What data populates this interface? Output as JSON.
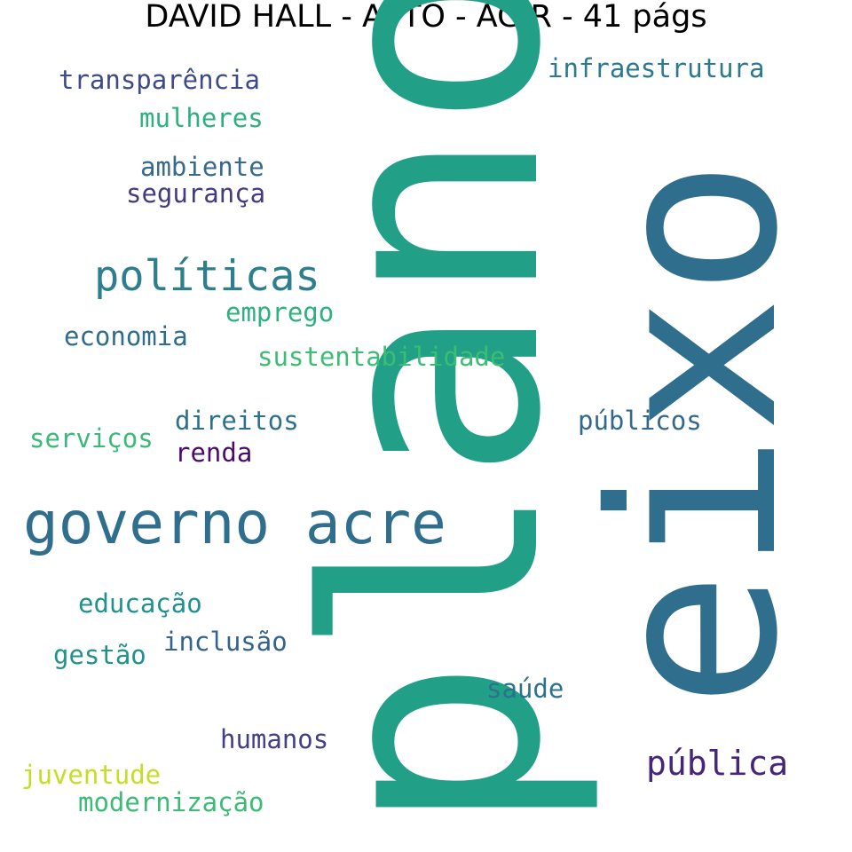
{
  "title": "DAVID HALL - APTO - AGIR - 41 págs",
  "words": [
    {
      "text": "plano",
      "color": "#21a087",
      "orientation": "vertical"
    },
    {
      "text": "eixo",
      "color": "#306e8e",
      "orientation": "vertical"
    },
    {
      "text": "governo acre",
      "color": "#306e8e",
      "orientation": "horizontal"
    },
    {
      "text": "políticas",
      "color": "#2d7f8e",
      "orientation": "horizontal"
    },
    {
      "text": "pública",
      "color": "#46267b",
      "orientation": "horizontal"
    },
    {
      "text": "infraestrutura",
      "color": "#2a798e",
      "orientation": "horizontal"
    },
    {
      "text": "transparência",
      "color": "#3e4a89",
      "orientation": "horizontal"
    },
    {
      "text": "mulheres",
      "color": "#2cb17e",
      "orientation": "horizontal"
    },
    {
      "text": "ambiente",
      "color": "#356a8d",
      "orientation": "horizontal"
    },
    {
      "text": "segurança",
      "color": "#443a83",
      "orientation": "horizontal"
    },
    {
      "text": "emprego",
      "color": "#2db27d",
      "orientation": "horizontal"
    },
    {
      "text": "economia",
      "color": "#2f6d8e",
      "orientation": "horizontal"
    },
    {
      "text": "sustentabilidade",
      "color": "#3dbc74",
      "orientation": "horizontal"
    },
    {
      "text": "direitos",
      "color": "#2d708e",
      "orientation": "horizontal"
    },
    {
      "text": "públicos",
      "color": "#31688e",
      "orientation": "horizontal"
    },
    {
      "text": "serviços",
      "color": "#3aba76",
      "orientation": "horizontal"
    },
    {
      "text": "renda",
      "color": "#4a0c6b",
      "orientation": "horizontal"
    },
    {
      "text": "educação",
      "color": "#21918c",
      "orientation": "horizontal"
    },
    {
      "text": "inclusão",
      "color": "#33638d",
      "orientation": "horizontal"
    },
    {
      "text": "gestão",
      "color": "#21918c",
      "orientation": "horizontal"
    },
    {
      "text": "saúde",
      "color": "#2c728e",
      "orientation": "horizontal"
    },
    {
      "text": "humanos",
      "color": "#433e85",
      "orientation": "horizontal"
    },
    {
      "text": "juventude",
      "color": "#c2df23",
      "orientation": "horizontal"
    },
    {
      "text": "modernização",
      "color": "#3bbb75",
      "orientation": "horizontal"
    }
  ]
}
